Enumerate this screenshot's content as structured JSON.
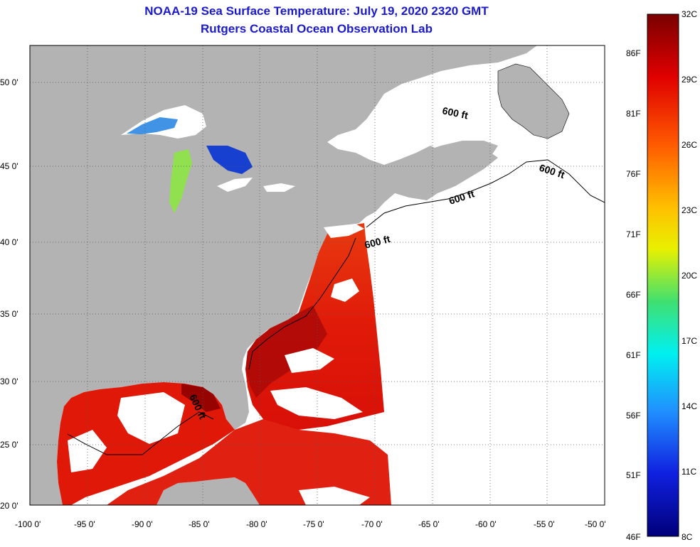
{
  "title": "NOAA-19 Sea Surface Temperature:  July 19, 2020 2320 GMT",
  "subtitle": "Rutgers Coastal Ocean Observation Lab",
  "colors": {
    "land": "#b3b3b3",
    "no_data": "#ffffff",
    "grid": "#555555",
    "title": "#1a1acc"
  },
  "map": {
    "lon_range": [
      -100,
      -50
    ],
    "lat_range": [
      20,
      52
    ],
    "lon_ticks": [
      "-100 0'",
      "-95 0'",
      "-90 0'",
      "-85 0'",
      "-80 0'",
      "-75 0'",
      "-70 0'",
      "-65 0'",
      "-60 0'",
      "-55 0'",
      "-50 0'"
    ],
    "lat_ticks": [
      "20 0'",
      "25 0'",
      "30 0'",
      "35 0'",
      "40 0'",
      "45 0'",
      "50 0'"
    ],
    "contour_label": "600 ft"
  },
  "colorbar": {
    "celsius": [
      "32C",
      "29C",
      "26C",
      "23C",
      "20C",
      "17C",
      "14C",
      "11C",
      "8C"
    ],
    "fahrenheit": [
      "86F",
      "81F",
      "76F",
      "71F",
      "66F",
      "61F",
      "56F",
      "51F",
      "46F"
    ],
    "range_c": [
      8,
      32
    ]
  }
}
